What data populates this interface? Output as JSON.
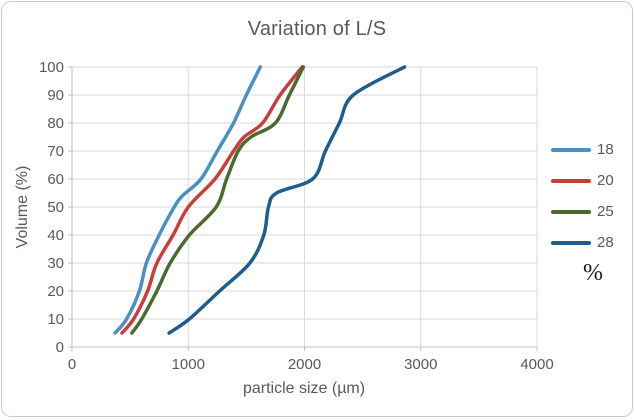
{
  "window": {
    "title": "Variation of L/S"
  },
  "colors": {
    "text": "#595959",
    "grid": "#d9d9d9",
    "axis": "#bfbfbf",
    "background": "#ffffff",
    "card_border": "#c9c9c9",
    "legend_title_text": "#1a1a1a"
  },
  "chart_data": {
    "type": "line",
    "title": "Variation of L/S",
    "xlabel": "particle size (µm)",
    "ylabel": "Volume (%)",
    "xlim": [
      0,
      4000
    ],
    "ylim": [
      0,
      100
    ],
    "x_ticks": [
      0,
      1000,
      2000,
      3000,
      4000
    ],
    "y_ticks": [
      0,
      10,
      20,
      30,
      40,
      50,
      60,
      70,
      80,
      90,
      100
    ],
    "grid": true,
    "legend_position": "right",
    "legend_title": "%",
    "series": [
      {
        "name": "18",
        "color": "#4a90c2",
        "points": [
          [
            370,
            5
          ],
          [
            470,
            10
          ],
          [
            580,
            20
          ],
          [
            640,
            30
          ],
          [
            750,
            40
          ],
          [
            880,
            50
          ],
          [
            950,
            54
          ],
          [
            1110,
            60
          ],
          [
            1250,
            70
          ],
          [
            1390,
            80
          ],
          [
            1500,
            90
          ],
          [
            1620,
            100
          ]
        ]
      },
      {
        "name": "20",
        "color": "#cb3d3b",
        "points": [
          [
            430,
            5
          ],
          [
            530,
            10
          ],
          [
            650,
            20
          ],
          [
            730,
            30
          ],
          [
            870,
            40
          ],
          [
            1000,
            50
          ],
          [
            1230,
            60
          ],
          [
            1390,
            70
          ],
          [
            1480,
            75
          ],
          [
            1640,
            80
          ],
          [
            1790,
            90
          ],
          [
            1980,
            100
          ]
        ]
      },
      {
        "name": "25",
        "color": "#4b6a2d",
        "points": [
          [
            515,
            5
          ],
          [
            600,
            10
          ],
          [
            730,
            20
          ],
          [
            845,
            30
          ],
          [
            1010,
            40
          ],
          [
            1240,
            50
          ],
          [
            1330,
            60
          ],
          [
            1430,
            70
          ],
          [
            1540,
            75
          ],
          [
            1750,
            80
          ],
          [
            1870,
            90
          ],
          [
            1990,
            100
          ]
        ]
      },
      {
        "name": "28",
        "color": "#1f5d8d",
        "points": [
          [
            835,
            5
          ],
          [
            1010,
            10
          ],
          [
            1270,
            20
          ],
          [
            1530,
            30
          ],
          [
            1650,
            40
          ],
          [
            1690,
            50
          ],
          [
            1760,
            55
          ],
          [
            2070,
            60
          ],
          [
            2180,
            70
          ],
          [
            2300,
            80
          ],
          [
            2420,
            90
          ],
          [
            2860,
            100
          ]
        ]
      }
    ]
  }
}
